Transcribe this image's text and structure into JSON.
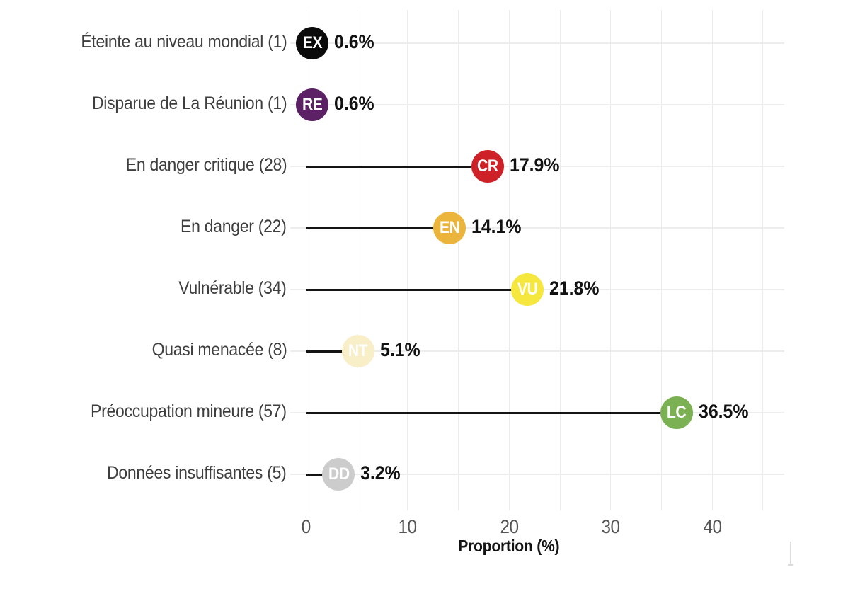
{
  "chart_data": {
    "type": "bar",
    "variant": "horizontal-lollipop",
    "title": "",
    "xlabel": "Proportion (%)",
    "ylabel": "",
    "categories": [
      "Éteinte au niveau mondial (1)",
      "Disparue de La Réunion (1)",
      "En danger critique (28)",
      "En danger (22)",
      "Vulnérable (34)",
      "Quasi menacée (8)",
      "Préoccupation mineure (57)",
      "Données insuffisantes (5)"
    ],
    "counts": [
      1,
      1,
      28,
      22,
      34,
      8,
      57,
      5
    ],
    "values": [
      0.6,
      0.6,
      17.9,
      14.1,
      21.8,
      5.1,
      36.5,
      3.2
    ],
    "value_labels": [
      "0.6%",
      "0.6%",
      "17.9%",
      "14.1%",
      "21.8%",
      "5.1%",
      "36.5%",
      "3.2%"
    ],
    "point_codes": [
      "EX",
      "RE",
      "CR",
      "EN",
      "VU",
      "NT",
      "LC",
      "DD"
    ],
    "point_colors": [
      "#0b0b0b",
      "#5b2164",
      "#cd2127",
      "#ebb53c",
      "#f5e73d",
      "#f8efc9",
      "#7cb153",
      "#cccccc"
    ],
    "point_text_color": "#ffffff",
    "xticks": [
      0,
      10,
      20,
      30,
      40
    ],
    "xtick_labels": [
      "0",
      "10",
      "20",
      "30",
      "40"
    ],
    "xlim": [
      0,
      47
    ],
    "grid": {
      "vertical_step": 5,
      "vertical_max": 45,
      "horizontal_per_row": true,
      "color": "#ededed"
    },
    "legend": "none",
    "stem_color": "#141414",
    "background": "#ffffff"
  }
}
